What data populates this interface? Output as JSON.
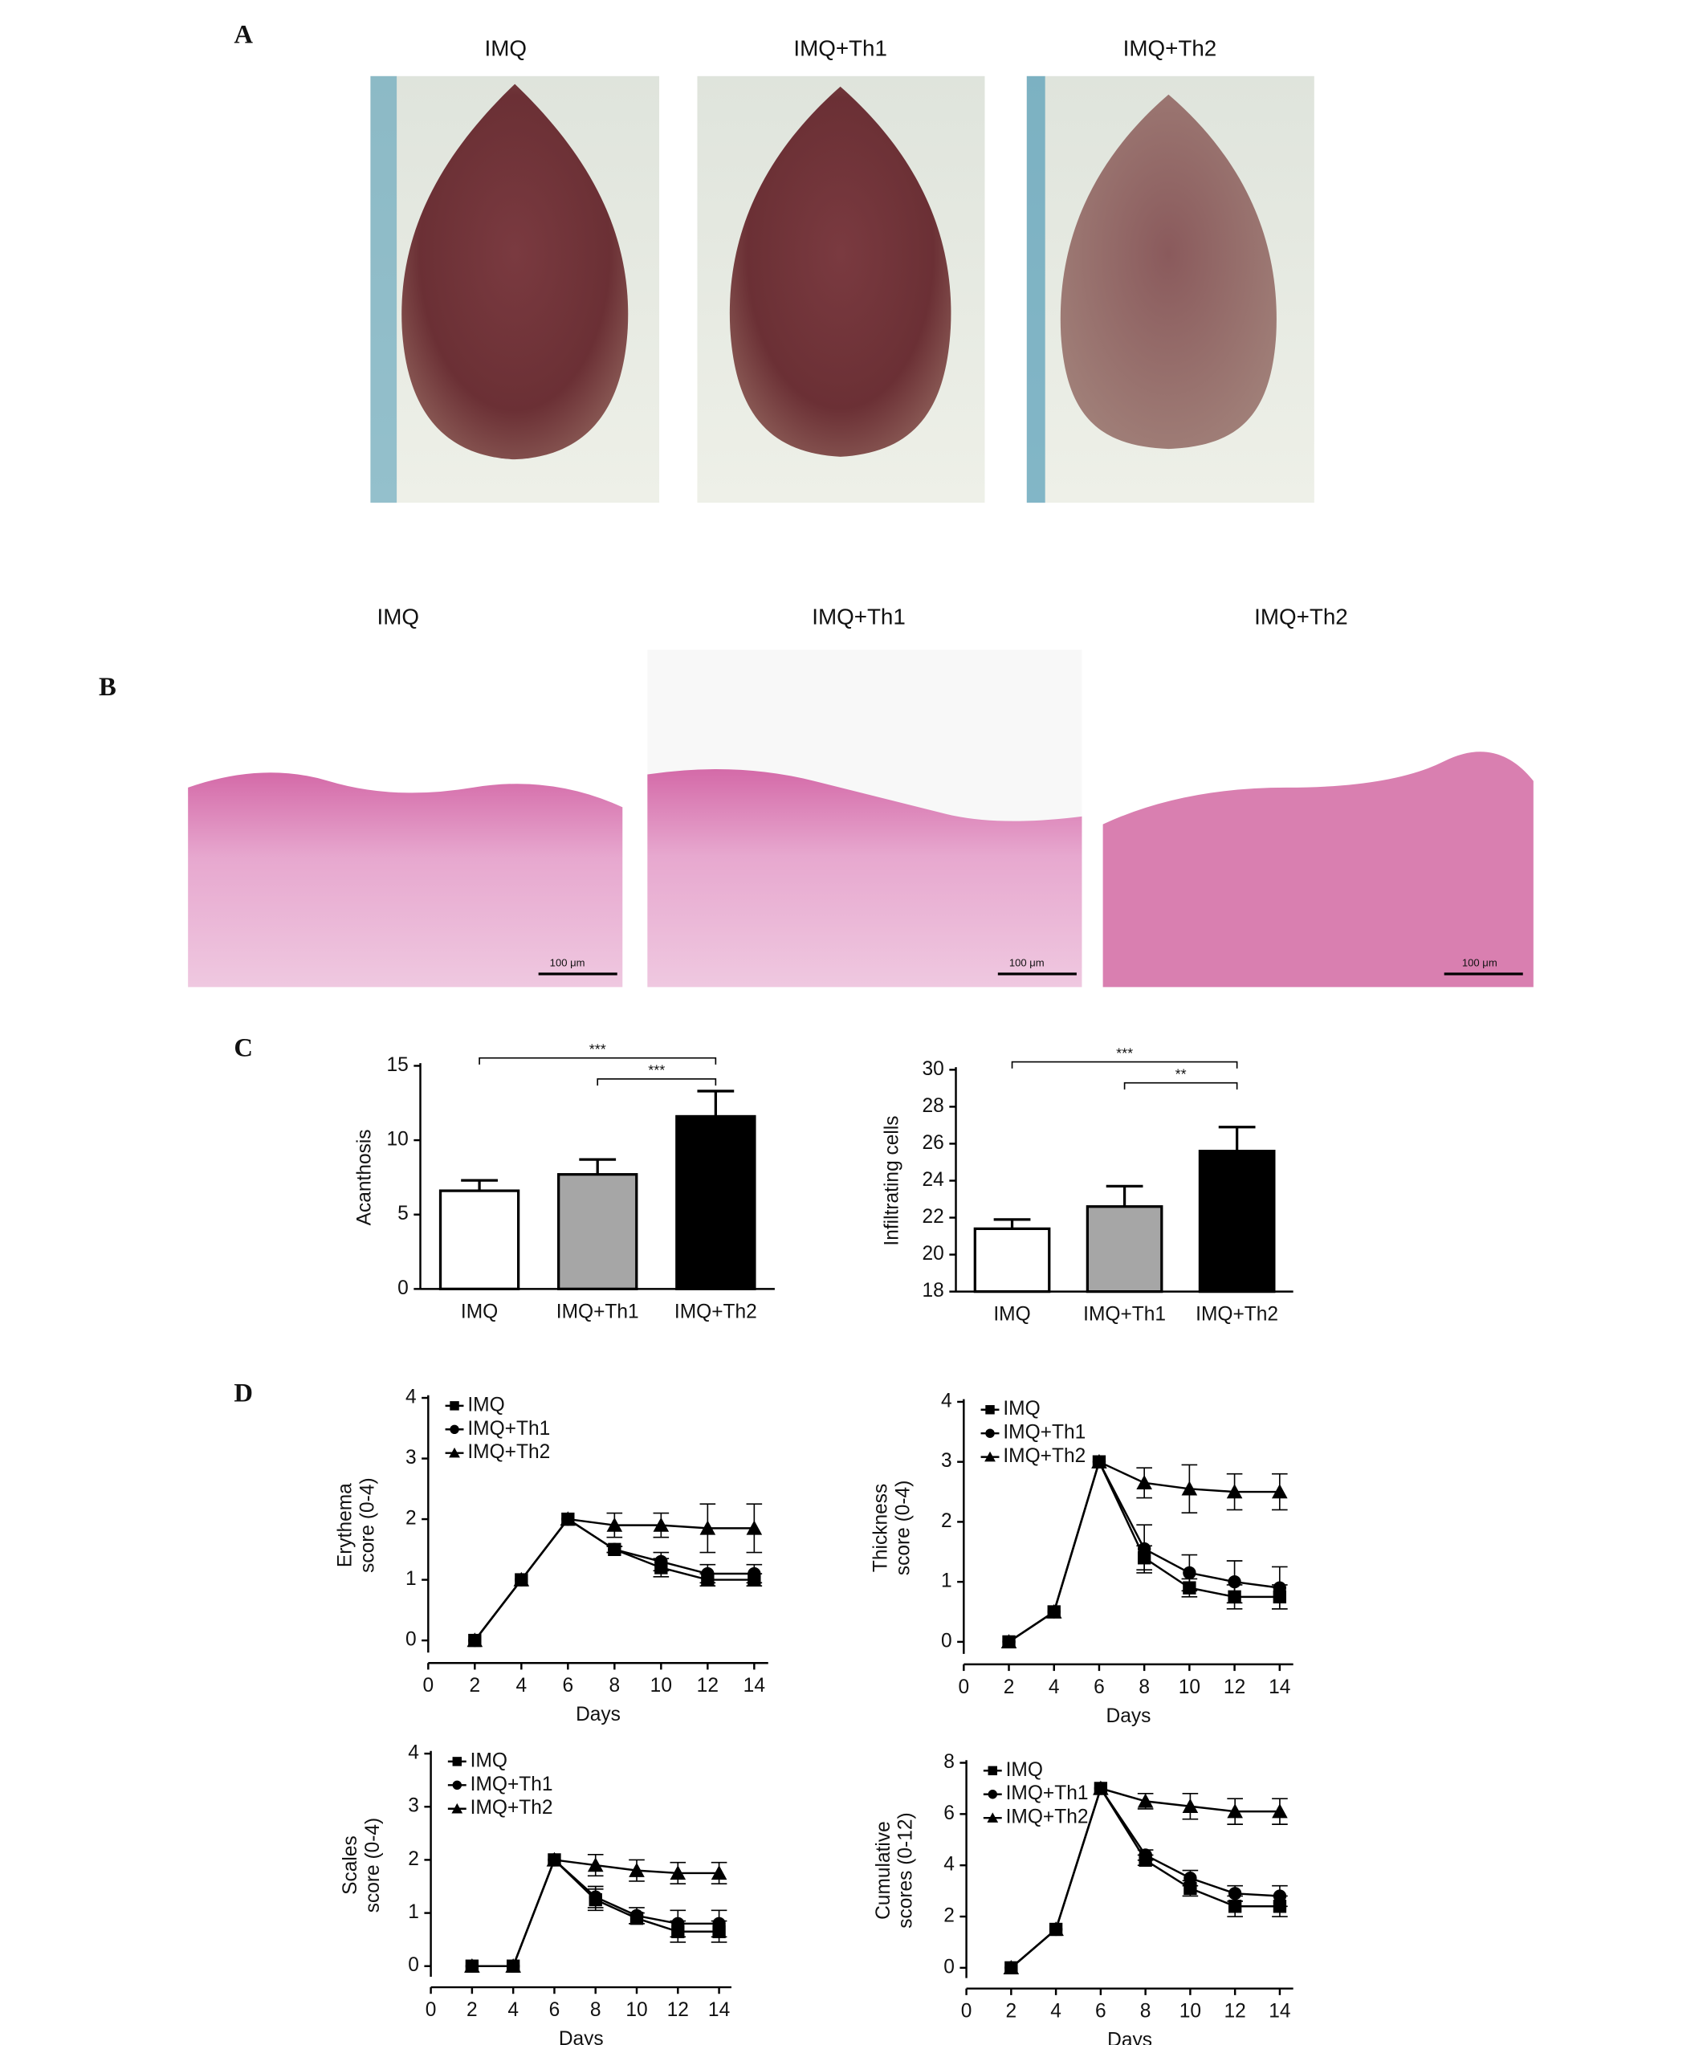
{
  "panel_labels": [
    "A",
    "B",
    "C",
    "D"
  ],
  "photo_titles_a": [
    "IMQ",
    "IMQ+Th1",
    "IMQ+Th2"
  ],
  "photo_titles_b": [
    "IMQ",
    "IMQ+Th1",
    "IMQ+Th2"
  ],
  "scale_bar_label": "100 μm",
  "chart_data": [
    {
      "type": "bar",
      "ylabel": [
        "Acanthosis"
      ],
      "categories": [
        "IMQ",
        "IMQ+Th1",
        "IMQ+Th2"
      ],
      "values": [
        6.6,
        7.7,
        11.6
      ],
      "errors": [
        0.7,
        1.0,
        1.7
      ],
      "colors": [
        "#ffffff",
        "#a6a6a6",
        "#000000"
      ],
      "ylim": [
        0,
        15
      ],
      "yticks": [
        0,
        5,
        10,
        15
      ],
      "brackets": [
        {
          "between": [
            0,
            2
          ],
          "label": "***"
        },
        {
          "between": [
            1,
            2
          ],
          "label": "***"
        }
      ]
    },
    {
      "type": "bar",
      "ylabel": [
        "Infiltrating cells"
      ],
      "categories": [
        "IMQ",
        "IMQ+Th1",
        "IMQ+Th2"
      ],
      "values": [
        21.4,
        22.6,
        25.6
      ],
      "errors": [
        0.5,
        1.1,
        1.3
      ],
      "colors": [
        "#ffffff",
        "#a6a6a6",
        "#000000"
      ],
      "ylim": [
        18,
        30
      ],
      "yticks": [
        18,
        20,
        22,
        24,
        26,
        28,
        30
      ],
      "brackets": [
        {
          "between": [
            0,
            2
          ],
          "label": "***"
        },
        {
          "between": [
            1,
            2
          ],
          "label": "**"
        }
      ]
    },
    {
      "type": "line",
      "ylabel": [
        "Erythema",
        "score (0-4)"
      ],
      "xlabel": "Days",
      "x": [
        2,
        4,
        6,
        8,
        10,
        12,
        14
      ],
      "xlim": [
        0,
        14.6
      ],
      "xticks": [
        0,
        2,
        4,
        6,
        8,
        10,
        12,
        14
      ],
      "ylim": [
        -0.2,
        4
      ],
      "yticks": [
        0,
        1,
        2,
        3,
        4
      ],
      "series": [
        {
          "name": "IMQ",
          "marker": "square",
          "color": "#000000",
          "values": [
            0,
            1,
            2,
            1.5,
            1.2,
            1.0,
            1.0
          ],
          "errors": [
            null,
            null,
            null,
            0.05,
            0.15,
            0.1,
            0.1
          ]
        },
        {
          "name": "IMQ+Th1",
          "marker": "circle",
          "color": "#000000",
          "values": [
            0,
            1,
            2,
            1.5,
            1.3,
            1.1,
            1.1
          ],
          "errors": [
            null,
            null,
            null,
            0.05,
            0.15,
            0.15,
            0.15
          ]
        },
        {
          "name": "IMQ+Th2",
          "marker": "triangle",
          "color": "#000000",
          "values": [
            0,
            1,
            2,
            1.9,
            1.9,
            1.85,
            1.85
          ],
          "errors": [
            null,
            null,
            null,
            0.2,
            0.2,
            0.4,
            0.4
          ]
        }
      ]
    },
    {
      "type": "line",
      "ylabel": [
        "Thickness",
        "score (0-4)"
      ],
      "xlabel": "Days",
      "x": [
        2,
        4,
        6,
        8,
        10,
        12,
        14
      ],
      "xlim": [
        0,
        14.6
      ],
      "xticks": [
        0,
        2,
        4,
        6,
        8,
        10,
        12,
        14
      ],
      "ylim": [
        -0.2,
        4
      ],
      "yticks": [
        0,
        1,
        2,
        3,
        4
      ],
      "series": [
        {
          "name": "IMQ",
          "marker": "square",
          "color": "#000000",
          "values": [
            0,
            0.5,
            3,
            1.4,
            0.9,
            0.75,
            0.75
          ],
          "errors": [
            null,
            null,
            null,
            0.2,
            0.15,
            0.2,
            0.2
          ]
        },
        {
          "name": "IMQ+Th1",
          "marker": "circle",
          "color": "#000000",
          "values": [
            0,
            0.5,
            3,
            1.55,
            1.15,
            1.0,
            0.9
          ],
          "errors": [
            null,
            null,
            null,
            0.4,
            0.3,
            0.35,
            0.35
          ]
        },
        {
          "name": "IMQ+Th2",
          "marker": "triangle",
          "color": "#000000",
          "values": [
            0,
            0.5,
            3,
            2.65,
            2.55,
            2.5,
            2.5
          ],
          "errors": [
            null,
            null,
            null,
            0.25,
            0.4,
            0.3,
            0.3
          ]
        }
      ]
    },
    {
      "type": "line",
      "ylabel": [
        "Scales",
        "score (0-4)"
      ],
      "xlabel": "Days",
      "x": [
        2,
        4,
        6,
        8,
        10,
        12,
        14
      ],
      "xlim": [
        0,
        14.6
      ],
      "xticks": [
        0,
        2,
        4,
        6,
        8,
        10,
        12,
        14
      ],
      "ylim": [
        -0.2,
        4
      ],
      "yticks": [
        0,
        1,
        2,
        3,
        4
      ],
      "series": [
        {
          "name": "IMQ",
          "marker": "square",
          "color": "#000000",
          "values": [
            0,
            0,
            2,
            1.25,
            0.9,
            0.65,
            0.65
          ],
          "errors": [
            null,
            null,
            null,
            0.2,
            0.1,
            0.2,
            0.2
          ]
        },
        {
          "name": "IMQ+Th1",
          "marker": "circle",
          "color": "#000000",
          "values": [
            0,
            0,
            2,
            1.3,
            0.95,
            0.8,
            0.8
          ],
          "errors": [
            null,
            null,
            null,
            0.2,
            0.15,
            0.25,
            0.25
          ]
        },
        {
          "name": "IMQ+Th2",
          "marker": "triangle",
          "color": "#000000",
          "values": [
            0,
            0,
            2,
            1.9,
            1.8,
            1.75,
            1.75
          ],
          "errors": [
            null,
            null,
            null,
            0.2,
            0.2,
            0.2,
            0.2
          ]
        }
      ]
    },
    {
      "type": "line",
      "ylabel": [
        "Cumulative",
        "scores (0-12)"
      ],
      "xlabel": "Days",
      "x": [
        2,
        4,
        6,
        8,
        10,
        12,
        14
      ],
      "xlim": [
        0,
        14.6
      ],
      "xticks": [
        0,
        2,
        4,
        6,
        8,
        10,
        12,
        14
      ],
      "ylim": [
        -0.4,
        8
      ],
      "yticks": [
        0,
        2,
        4,
        6,
        8
      ],
      "series": [
        {
          "name": "IMQ",
          "marker": "square",
          "color": "#000000",
          "values": [
            0,
            1.5,
            7,
            4.2,
            3.1,
            2.4,
            2.4
          ],
          "errors": [
            null,
            null,
            null,
            0.2,
            0.3,
            0.4,
            0.4
          ]
        },
        {
          "name": "IMQ+Th1",
          "marker": "circle",
          "color": "#000000",
          "values": [
            0,
            1.5,
            7,
            4.4,
            3.5,
            2.9,
            2.8
          ],
          "errors": [
            null,
            null,
            null,
            0.2,
            0.3,
            0.3,
            0.4
          ]
        },
        {
          "name": "IMQ+Th2",
          "marker": "triangle",
          "color": "#000000",
          "values": [
            0,
            1.5,
            7,
            6.5,
            6.3,
            6.1,
            6.1
          ],
          "errors": [
            null,
            null,
            null,
            0.3,
            0.5,
            0.5,
            0.5
          ]
        }
      ]
    }
  ]
}
